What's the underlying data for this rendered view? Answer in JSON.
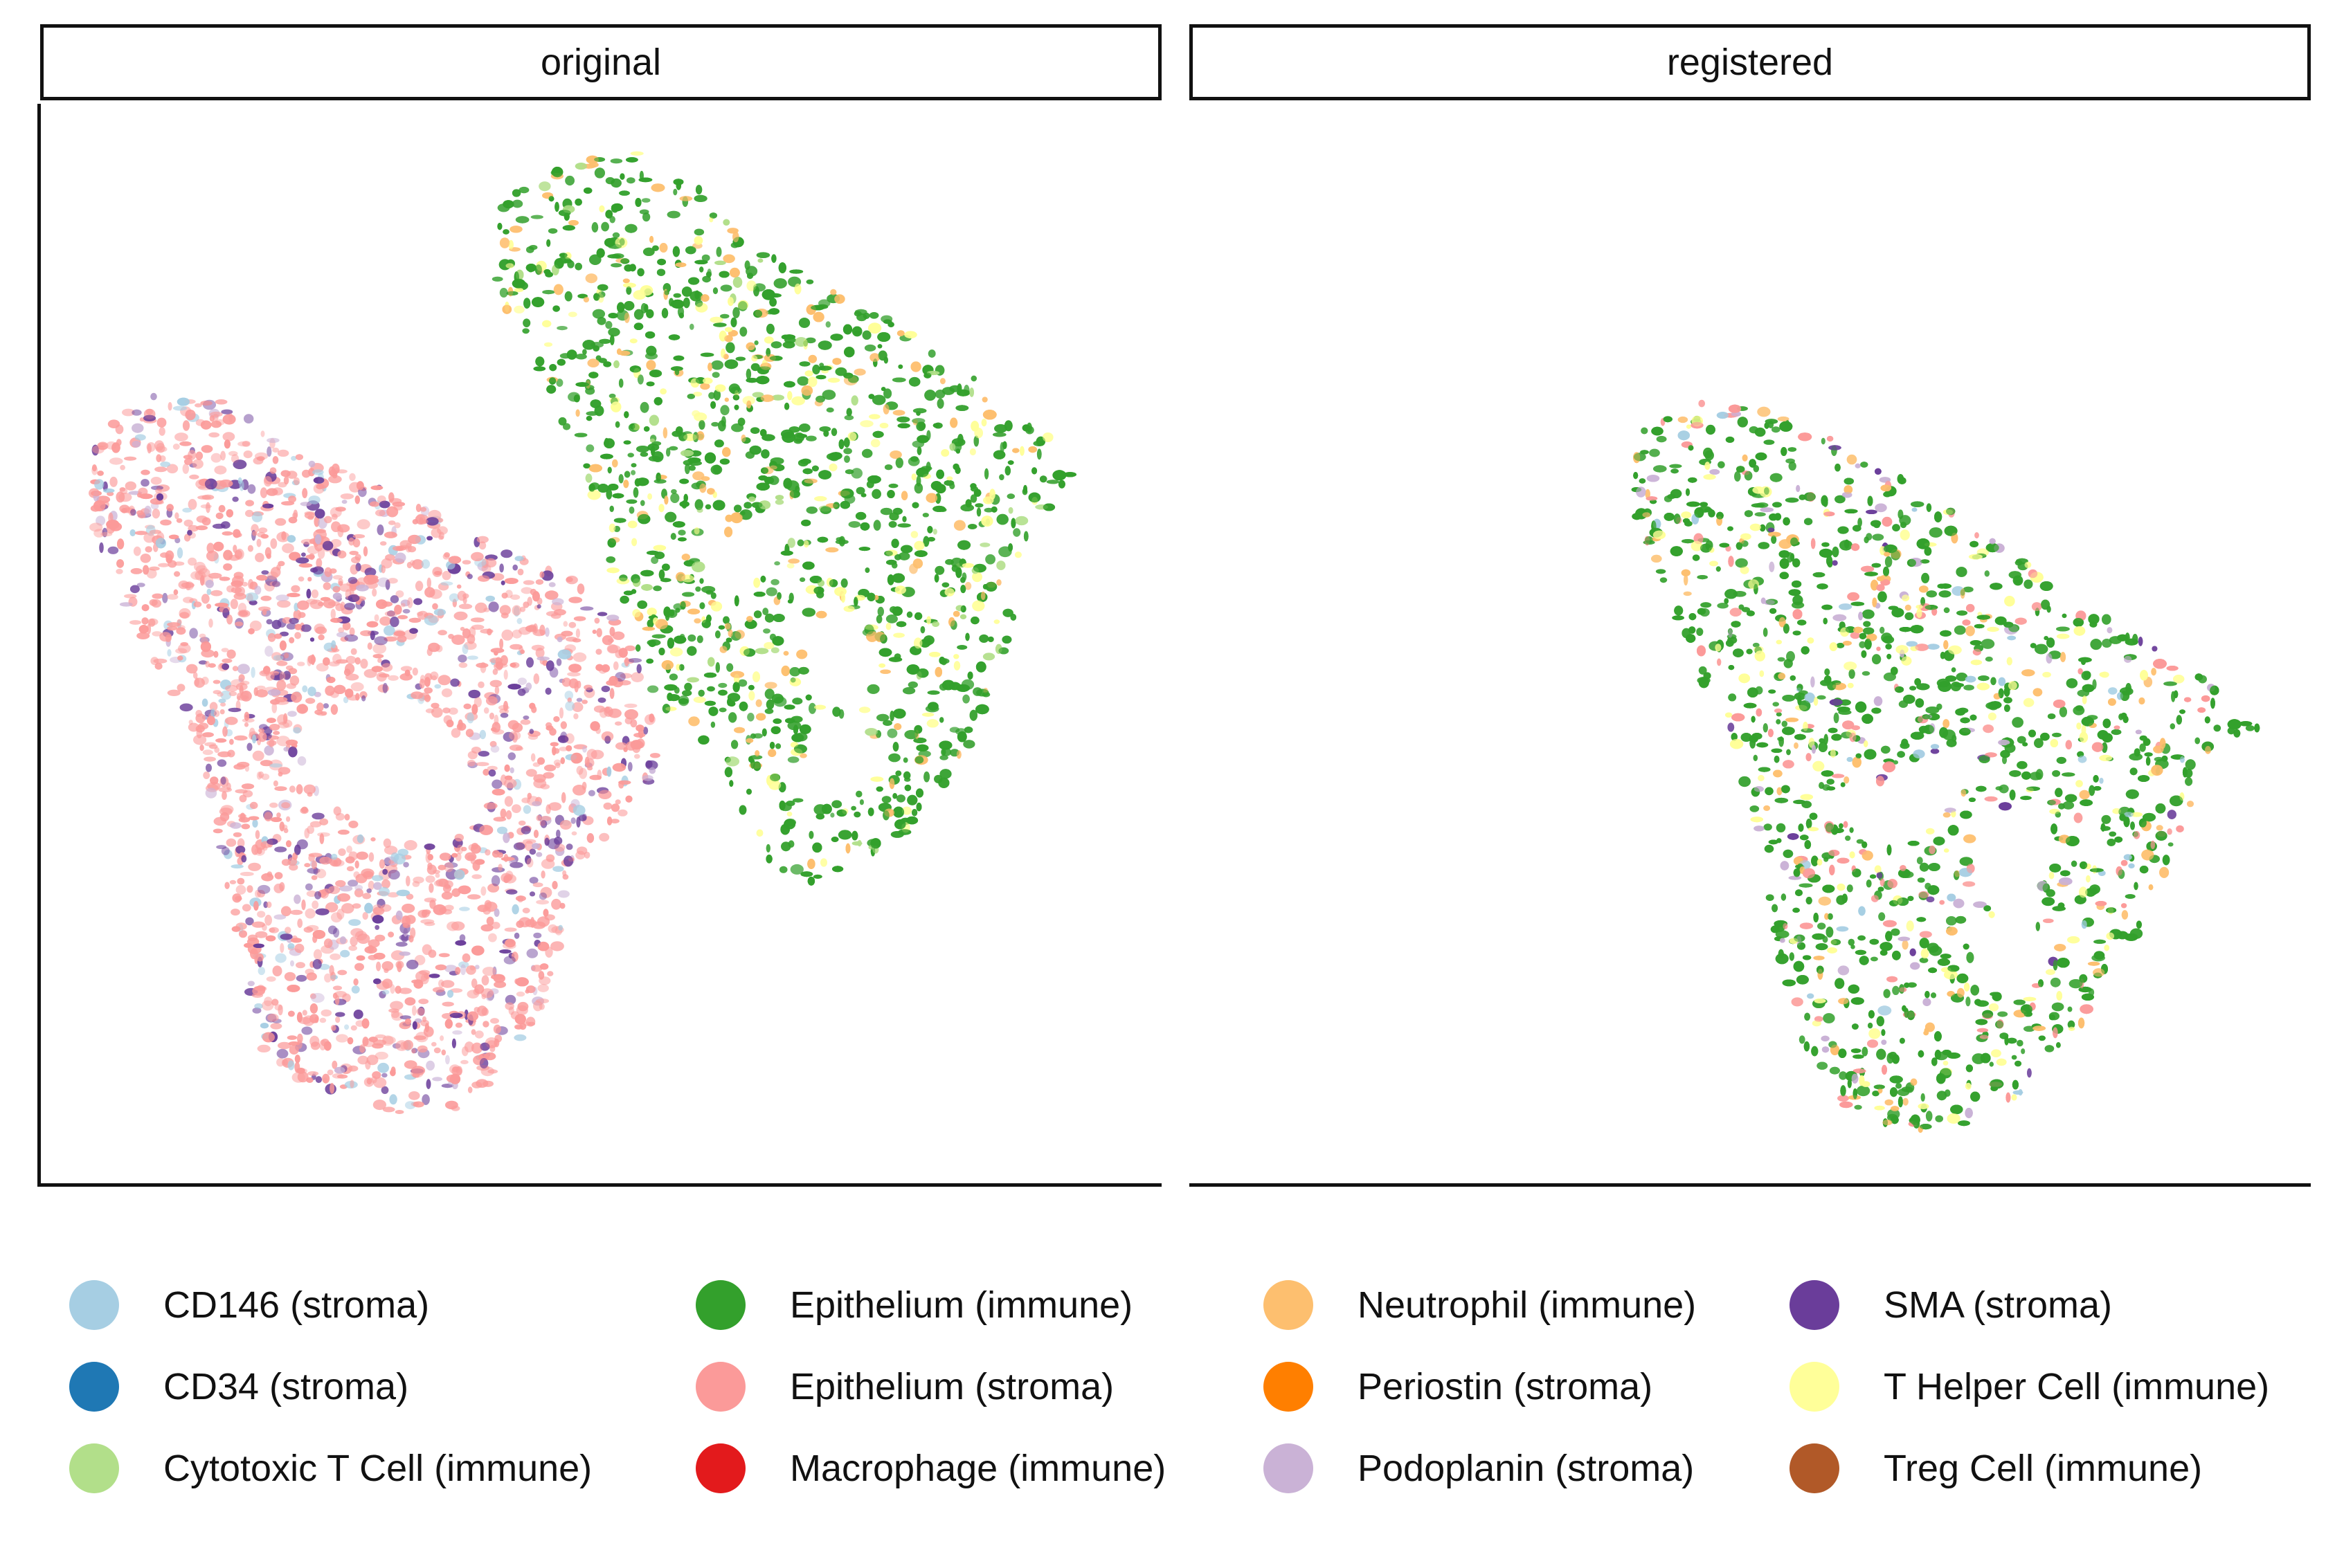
{
  "chart_data": {
    "type": "scatter",
    "panels": [
      "original",
      "registered"
    ],
    "categories": [
      {
        "label": "CD146 (stroma)",
        "color": "#a6cee3"
      },
      {
        "label": "CD34 (stroma)",
        "color": "#1f78b4"
      },
      {
        "label": "Cytotoxic T Cell (immune)",
        "color": "#b2df8a"
      },
      {
        "label": "Epithelium (immune)",
        "color": "#33a02c"
      },
      {
        "label": "Epithelium (stroma)",
        "color": "#fb9a99"
      },
      {
        "label": "Macrophage (immune)",
        "color": "#e31a1c"
      },
      {
        "label": "Neutrophil (immune)",
        "color": "#fdbf6f"
      },
      {
        "label": "Periostin (stroma)",
        "color": "#ff7f00"
      },
      {
        "label": "Podoplanin (stroma)",
        "color": "#cab2d6"
      },
      {
        "label": "SMA (stroma)",
        "color": "#6a3d9a"
      },
      {
        "label": "T Helper Cell (immune)",
        "color": "#ffff99"
      },
      {
        "label": "Treg Cell (immune)",
        "color": "#b15928"
      }
    ],
    "legend_position": "bottom",
    "grid": false
  }
}
